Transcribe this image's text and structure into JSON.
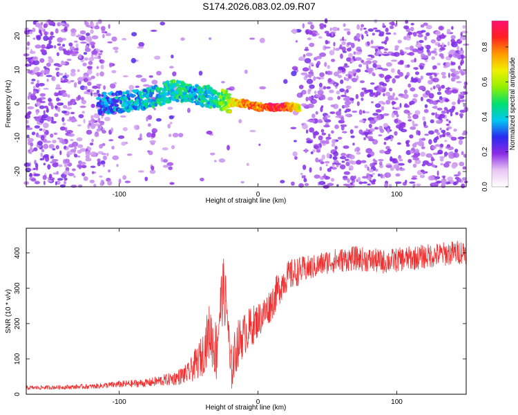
{
  "page": {
    "title": "S174.2026.083.02.09.R07"
  },
  "chart_data": [
    {
      "type": "heatmap",
      "title": "S174.2026.083.02.09.R07",
      "xlabel": "Height of straight line (km)",
      "ylabel": "Frequency (Hz)",
      "xlim": [
        -167,
        150
      ],
      "ylim": [
        -24.5,
        24.5
      ],
      "xticks": [
        -100,
        0,
        100
      ],
      "yticks": [
        -20,
        -10,
        0,
        10,
        20
      ],
      "colorbar": {
        "label": "Normalized spectral amplitude",
        "range": [
          0.0,
          0.95
        ],
        "ticks": [
          0.0,
          0.2,
          0.4,
          0.6,
          0.8
        ],
        "colors": [
          "#ffffff",
          "#e8c6f4",
          "#8b2be6",
          "#2a2af0",
          "#00c8f0",
          "#00e070",
          "#90f000",
          "#f0f000",
          "#ff9a00",
          "#ff2020",
          "#ff1070"
        ]
      },
      "ridge": {
        "description_points": [
          {
            "x": -115,
            "y": 0.0,
            "amp": 0.3
          },
          {
            "x": -100,
            "y": 0.5,
            "amp": 0.35
          },
          {
            "x": -80,
            "y": 1.5,
            "amp": 0.4
          },
          {
            "x": -60,
            "y": 4.0,
            "amp": 0.45
          },
          {
            "x": -45,
            "y": 3.0,
            "amp": 0.4
          },
          {
            "x": -30,
            "y": 1.5,
            "amp": 0.45
          },
          {
            "x": -20,
            "y": 0.5,
            "amp": 0.6
          },
          {
            "x": -10,
            "y": 0.0,
            "amp": 0.8
          },
          {
            "x": 0,
            "y": -1.0,
            "amp": 0.75
          },
          {
            "x": 10,
            "y": -1.0,
            "amp": 0.9
          },
          {
            "x": 20,
            "y": -1.0,
            "amp": 0.85
          },
          {
            "x": 30,
            "y": -1.0,
            "amp": 0.6
          }
        ],
        "blank_region_x": [
          -110,
          33
        ]
      }
    },
    {
      "type": "line",
      "xlabel": "Height of straight line (km)",
      "ylabel": "SNR (10 * v/v)",
      "xlim": [
        -167,
        150
      ],
      "ylim": [
        0,
        470
      ],
      "xticks": [
        -100,
        0,
        100
      ],
      "yticks": [
        0,
        100,
        200,
        300,
        400
      ],
      "color": "#f03030",
      "series": [
        {
          "name": "SNR",
          "x": [
            -167,
            -140,
            -120,
            -100,
            -80,
            -60,
            -50,
            -40,
            -35,
            -30,
            -28,
            -25,
            -22,
            -20,
            -15,
            -10,
            -5,
            0,
            5,
            10,
            15,
            20,
            25,
            30,
            40,
            50,
            60,
            70,
            80,
            90,
            100,
            110,
            120,
            130,
            140,
            150
          ],
          "values": [
            18,
            20,
            22,
            28,
            32,
            45,
            60,
            110,
            180,
            120,
            220,
            300,
            230,
            60,
            140,
            170,
            190,
            210,
            230,
            260,
            300,
            330,
            340,
            350,
            360,
            375,
            380,
            385,
            380,
            375,
            380,
            385,
            390,
            395,
            400,
            405
          ],
          "noise_amplitude": [
            6,
            6,
            7,
            10,
            12,
            20,
            30,
            60,
            80,
            90,
            90,
            90,
            80,
            70,
            70,
            60,
            60,
            50,
            50,
            50,
            50,
            45,
            45,
            40,
            35,
            35,
            35,
            35,
            35,
            35,
            35,
            35,
            35,
            35,
            35,
            35
          ]
        }
      ]
    }
  ]
}
